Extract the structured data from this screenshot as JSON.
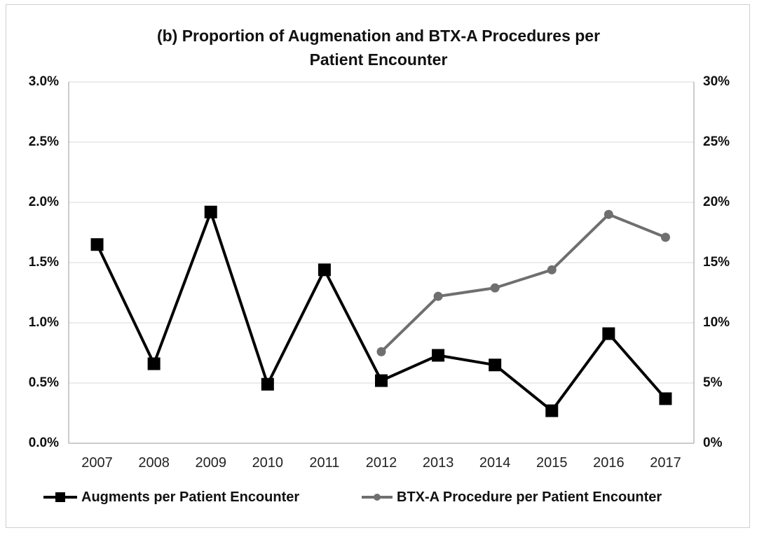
{
  "chart_data": {
    "type": "line",
    "title_lines": [
      "(b) Proportion of Augmenation and BTX-A Procedures per",
      "Patient Encounter"
    ],
    "categories": [
      "2007",
      "2008",
      "2009",
      "2010",
      "2011",
      "2012",
      "2013",
      "2014",
      "2015",
      "2016",
      "2017"
    ],
    "left_axis": {
      "ylim": [
        0,
        3.0
      ],
      "tick_labels": [
        "0.0%",
        "0.5%",
        "1.0%",
        "1.5%",
        "2.0%",
        "2.5%",
        "3.0%"
      ]
    },
    "right_axis": {
      "ylim": [
        0,
        30
      ],
      "tick_labels": [
        "0%",
        "5%",
        "10%",
        "15%",
        "20%",
        "25%",
        "30%"
      ]
    },
    "grid": "horizontal",
    "legend_position": "bottom",
    "series": [
      {
        "name": "Augments per Patient Encounter",
        "axis": "left",
        "color": "#000000",
        "marker": "square",
        "values": [
          1.65,
          0.66,
          1.92,
          0.49,
          1.44,
          0.52,
          0.73,
          0.65,
          0.27,
          0.91,
          0.37
        ]
      },
      {
        "name": "BTX-A Procedure per Patient Encounter",
        "axis": "right",
        "color": "#6f6f6f",
        "marker": "circle",
        "values": [
          null,
          null,
          null,
          null,
          null,
          7.6,
          12.2,
          12.9,
          14.4,
          19.0,
          17.1
        ]
      }
    ]
  }
}
